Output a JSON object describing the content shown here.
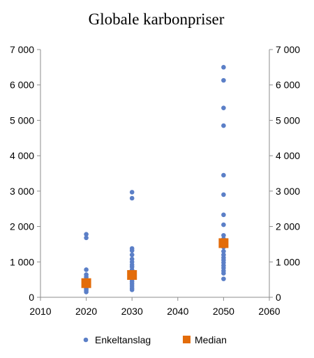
{
  "chart_data": {
    "type": "scatter",
    "title": "Globale karbonpriser",
    "xlabel": "",
    "ylabel": "",
    "xlim": [
      2010,
      2060
    ],
    "ylim": [
      0,
      7000
    ],
    "x_ticks": [
      "2010",
      "2020",
      "2030",
      "2040",
      "2050",
      "2060"
    ],
    "y_ticks": [
      "0",
      "1 000",
      "2 000",
      "3 000",
      "4 000",
      "5 000",
      "6 000",
      "7 000"
    ],
    "grid": false,
    "legend_position": "bottom",
    "colors": {
      "points": "#5b7fc7",
      "median": "#e36c0a",
      "axis": "#8c8c8c"
    },
    "series": [
      {
        "name": "Enkeltanslag",
        "marker": "circle",
        "points": [
          [
            2020,
            1780
          ],
          [
            2020,
            1680
          ],
          [
            2020,
            780
          ],
          [
            2020,
            640
          ],
          [
            2020,
            570
          ],
          [
            2020,
            500
          ],
          [
            2020,
            450
          ],
          [
            2020,
            400
          ],
          [
            2020,
            360
          ],
          [
            2020,
            320
          ],
          [
            2020,
            280
          ],
          [
            2020,
            240
          ],
          [
            2020,
            200
          ],
          [
            2020,
            150
          ],
          [
            2030,
            2970
          ],
          [
            2030,
            2800
          ],
          [
            2030,
            1380
          ],
          [
            2030,
            1320
          ],
          [
            2030,
            1200
          ],
          [
            2030,
            1080
          ],
          [
            2030,
            1000
          ],
          [
            2030,
            920
          ],
          [
            2030,
            860
          ],
          [
            2030,
            780
          ],
          [
            2030,
            700
          ],
          [
            2030,
            640
          ],
          [
            2030,
            580
          ],
          [
            2030,
            500
          ],
          [
            2030,
            440
          ],
          [
            2030,
            380
          ],
          [
            2030,
            320
          ],
          [
            2030,
            260
          ],
          [
            2030,
            210
          ],
          [
            2050,
            6500
          ],
          [
            2050,
            6130
          ],
          [
            2050,
            5350
          ],
          [
            2050,
            4850
          ],
          [
            2050,
            3450
          ],
          [
            2050,
            2900
          ],
          [
            2050,
            2330
          ],
          [
            2050,
            2050
          ],
          [
            2050,
            1750
          ],
          [
            2050,
            1650
          ],
          [
            2050,
            1550
          ],
          [
            2050,
            1420
          ],
          [
            2050,
            1300
          ],
          [
            2050,
            1200
          ],
          [
            2050,
            1120
          ],
          [
            2050,
            1050
          ],
          [
            2050,
            980
          ],
          [
            2050,
            900
          ],
          [
            2050,
            830
          ],
          [
            2050,
            750
          ],
          [
            2050,
            680
          ],
          [
            2050,
            520
          ]
        ]
      },
      {
        "name": "Median",
        "marker": "square",
        "points": [
          [
            2020,
            400
          ],
          [
            2030,
            630
          ],
          [
            2050,
            1530
          ]
        ]
      }
    ]
  }
}
